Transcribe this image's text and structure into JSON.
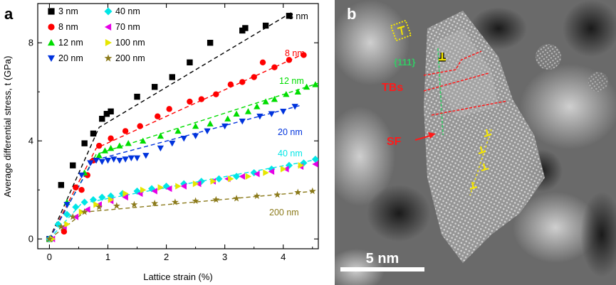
{
  "panel_a": {
    "letter": "a",
    "chart_data": {
      "type": "scatter",
      "xlabel": "Lattice strain (%)",
      "ylabel": "Average differential stress, t (GPa)",
      "xlim": [
        -0.2,
        4.6
      ],
      "ylim": [
        -0.4,
        9.6
      ],
      "xticks": [
        0,
        1,
        2,
        3,
        4
      ],
      "xtick_labels": [
        "0",
        "1",
        "2",
        "3",
        "4"
      ],
      "yticks": [
        0,
        4,
        8
      ],
      "ytick_labels": [
        "0",
        "4",
        "8"
      ],
      "grid": false,
      "legend_placement": "top-left, two columns",
      "series": [
        {
          "name": "3 nm",
          "color": "#000000",
          "marker": "square",
          "curve_label": "3 nm",
          "x": [
            0.0,
            0.2,
            0.4,
            0.6,
            0.75,
            0.9,
            0.98,
            1.05,
            1.5,
            1.8,
            2.1,
            2.4,
            2.75,
            3.3,
            3.35,
            3.7,
            4.1
          ],
          "y": [
            0.0,
            2.2,
            3.0,
            3.9,
            4.3,
            4.9,
            5.1,
            5.2,
            5.8,
            6.2,
            6.6,
            7.2,
            8.0,
            8.5,
            8.6,
            8.7,
            9.1
          ],
          "fit": [
            [
              0.0,
              0.0
            ],
            [
              0.85,
              4.55
            ],
            [
              4.15,
              9.25
            ]
          ]
        },
        {
          "name": "8 nm",
          "color": "#ff0000",
          "marker": "circle",
          "curve_label": "8 nm",
          "x": [
            0.0,
            0.25,
            0.45,
            0.55,
            0.65,
            0.75,
            0.85,
            1.05,
            1.3,
            1.55,
            1.85,
            2.05,
            2.4,
            2.6,
            2.85,
            3.1,
            3.3,
            3.5,
            3.65,
            3.85,
            4.1,
            4.35
          ],
          "y": [
            0.0,
            0.3,
            2.1,
            2.0,
            2.6,
            3.2,
            3.8,
            4.1,
            4.4,
            4.6,
            5.0,
            5.3,
            5.6,
            5.7,
            5.9,
            6.3,
            6.4,
            6.6,
            7.2,
            7.0,
            7.3,
            7.5
          ],
          "fit": [
            [
              0.0,
              0.0
            ],
            [
              0.8,
              3.7
            ],
            [
              4.4,
              7.6
            ]
          ]
        },
        {
          "name": "12 nm",
          "color": "#00dd00",
          "marker": "triangle-up",
          "curve_label": "12 nm",
          "x": [
            0.0,
            0.3,
            0.6,
            0.85,
            0.95,
            1.05,
            1.2,
            1.35,
            1.6,
            1.9,
            2.2,
            2.5,
            2.75,
            3.05,
            3.2,
            3.4,
            3.55,
            3.7,
            3.85,
            4.05,
            4.25,
            4.4,
            4.55
          ],
          "y": [
            0.0,
            1.5,
            2.7,
            3.4,
            3.6,
            3.7,
            3.8,
            3.9,
            4.0,
            4.2,
            4.4,
            4.6,
            4.7,
            4.9,
            5.1,
            5.2,
            5.4,
            5.6,
            5.7,
            5.9,
            6.0,
            6.2,
            6.3
          ],
          "fit": [
            [
              0.0,
              0.0
            ],
            [
              0.8,
              3.45
            ],
            [
              4.6,
              6.35
            ]
          ]
        },
        {
          "name": "20 nm",
          "color": "#0033dd",
          "marker": "triangle-down",
          "curve_label": "20 nm",
          "x": [
            0.0,
            0.3,
            0.55,
            0.7,
            0.8,
            0.9,
            1.0,
            1.1,
            1.2,
            1.3,
            1.4,
            1.5,
            1.65,
            1.9,
            2.1,
            2.3,
            2.5,
            2.7,
            3.0,
            3.3,
            3.6,
            3.8,
            4.0,
            4.2
          ],
          "y": [
            0.0,
            1.4,
            2.6,
            3.1,
            3.2,
            3.15,
            3.2,
            3.25,
            3.2,
            3.25,
            3.3,
            3.3,
            3.4,
            3.7,
            3.9,
            4.1,
            4.2,
            4.4,
            4.6,
            4.8,
            5.0,
            5.1,
            5.2,
            5.4
          ],
          "fit": [
            [
              0.0,
              0.0
            ],
            [
              0.75,
              3.2
            ],
            [
              4.3,
              5.45
            ]
          ]
        },
        {
          "name": "40 nm",
          "color": "#00e6e6",
          "marker": "diamond",
          "curve_label": "40 nm",
          "x": [
            0.0,
            0.15,
            0.3,
            0.45,
            0.6,
            0.75,
            0.9,
            1.05,
            1.25,
            1.5,
            1.75,
            2.0,
            2.3,
            2.6,
            2.9,
            3.2,
            3.5,
            3.8,
            4.1,
            4.35,
            4.55
          ],
          "y": [
            0.0,
            0.6,
            1.0,
            1.3,
            1.5,
            1.6,
            1.7,
            1.75,
            1.85,
            1.95,
            2.05,
            2.15,
            2.25,
            2.35,
            2.45,
            2.55,
            2.7,
            2.85,
            3.0,
            3.1,
            3.25
          ],
          "fit": [
            [
              0.0,
              0.0
            ],
            [
              0.55,
              1.45
            ],
            [
              4.6,
              3.25
            ]
          ]
        },
        {
          "name": "70 nm",
          "color": "#e600e6",
          "marker": "triangle-left",
          "curve_label": "",
          "x": [
            0.05,
            0.25,
            0.45,
            0.65,
            0.85,
            1.05,
            1.3,
            1.55,
            1.8,
            2.05,
            2.3,
            2.55,
            2.8,
            3.05,
            3.3,
            3.55,
            3.8,
            4.05,
            4.3,
            4.55
          ],
          "y": [
            0.0,
            0.5,
            0.9,
            1.2,
            1.4,
            1.55,
            1.7,
            1.85,
            1.95,
            2.05,
            2.15,
            2.25,
            2.35,
            2.45,
            2.55,
            2.65,
            2.75,
            2.85,
            2.95,
            3.05
          ]
        },
        {
          "name": "100 nm",
          "color": "#e6e600",
          "marker": "triangle-right",
          "curve_label": "",
          "x": [
            0.05,
            0.3,
            0.55,
            0.8,
            1.05,
            1.3,
            1.6,
            1.9,
            2.2,
            2.5,
            2.8,
            3.1,
            3.4,
            3.7,
            4.0,
            4.3
          ],
          "y": [
            0.0,
            0.6,
            1.1,
            1.4,
            1.6,
            1.85,
            2.0,
            2.1,
            2.15,
            2.25,
            2.35,
            2.45,
            2.55,
            2.7,
            2.85,
            3.0
          ]
        },
        {
          "name": "200 nm",
          "color": "#8b7a1a",
          "marker": "star",
          "curve_label": "200 nm",
          "x": [
            0.0,
            0.2,
            0.4,
            0.6,
            0.85,
            1.15,
            1.45,
            1.8,
            2.15,
            2.5,
            2.85,
            3.2,
            3.55,
            3.9,
            4.25,
            4.5
          ],
          "y": [
            0.0,
            0.5,
            0.9,
            1.1,
            1.3,
            1.35,
            1.4,
            1.45,
            1.5,
            1.55,
            1.6,
            1.65,
            1.75,
            1.8,
            1.9,
            1.95
          ],
          "fit": [
            [
              0.0,
              0.0
            ],
            [
              0.6,
              1.1
            ],
            [
              4.55,
              1.95
            ]
          ]
        }
      ]
    }
  },
  "panel_b": {
    "letter": "b",
    "label_111": "{111}",
    "label_tbs": "TBs",
    "label_sf": "SF",
    "scale_bar_label": "5 nm",
    "colors": {
      "yellow": "#f5e600",
      "red": "#ff1a1a",
      "green": "#33cc66"
    }
  }
}
